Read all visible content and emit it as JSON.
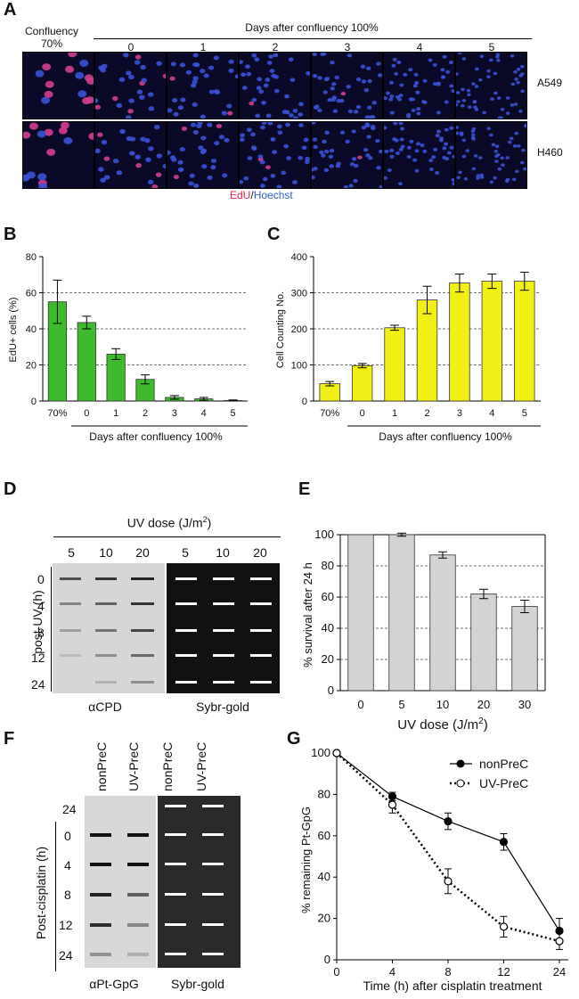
{
  "panelA": {
    "label": "A",
    "confluency_label_line1": "Confluency",
    "confluency_label_line2": "70%",
    "days_header": "Days after confluency 100%",
    "columns": [
      "0",
      "1",
      "2",
      "3",
      "4",
      "5"
    ],
    "rows": [
      "A549",
      "H460"
    ],
    "caption_edu": "EdU",
    "caption_sep": "/",
    "caption_hoechst": "Hoechst",
    "edu_color": "#e0204a",
    "hoechst_color": "#2a5fd8"
  },
  "chart_data": [
    {
      "panel": "B",
      "type": "bar",
      "categories": [
        "70%",
        "0",
        "1",
        "2",
        "3",
        "4",
        "5"
      ],
      "values": [
        55,
        43.5,
        26,
        12,
        2,
        1.2,
        0.3
      ],
      "errors": [
        12,
        3.5,
        3,
        2.5,
        1,
        0.8,
        0.3
      ],
      "ylabel": "EdU+ cells (%)",
      "xlabel": "Days after confluency 100%",
      "ylim": [
        0,
        80
      ],
      "yticks": [
        "0",
        "20",
        "40",
        "60",
        "80"
      ],
      "bar_color": "#3dbb2c"
    },
    {
      "panel": "C",
      "type": "bar",
      "categories": [
        "70%",
        "0",
        "1",
        "2",
        "3",
        "4",
        "5"
      ],
      "values": [
        48,
        98,
        203,
        280,
        327,
        332,
        332
      ],
      "errors": [
        6,
        6,
        7,
        38,
        25,
        20,
        25
      ],
      "ylabel": "Cell Counting No.",
      "xlabel": "Days after confluency 100%",
      "ylim": [
        0,
        400
      ],
      "yticks": [
        "0",
        "100",
        "200",
        "300",
        "400"
      ],
      "bar_color": "#f2ef14"
    },
    {
      "panel": "E",
      "type": "bar",
      "categories": [
        "0",
        "5",
        "10",
        "20",
        "30"
      ],
      "values": [
        100,
        100,
        87,
        62,
        54
      ],
      "errors": [
        0,
        1,
        2,
        3,
        4
      ],
      "ylabel": "% survival  after 24 h",
      "xlabel": "UV dose (J/m",
      "xlabel_sup": "2",
      "xlabel_end": ")",
      "ylim": [
        0,
        100
      ],
      "yticks": [
        "0",
        "20",
        "40",
        "60",
        "80",
        "100"
      ],
      "bar_color": "#d3d3d3"
    },
    {
      "panel": "G",
      "type": "line",
      "x": [
        "0",
        "4",
        "8",
        "12",
        "24"
      ],
      "series": [
        {
          "name": "nonPreC",
          "values": [
            100,
            79,
            67,
            57,
            14
          ],
          "errors": [
            0,
            2,
            4,
            4,
            6
          ],
          "style": "solid",
          "marker": "filled"
        },
        {
          "name": "UV-PreC",
          "values": [
            100,
            75,
            38,
            16,
            9
          ],
          "errors": [
            0,
            4,
            6,
            5,
            4
          ],
          "style": "dotted",
          "marker": "open"
        }
      ],
      "ylabel": "% remaining  Pt-GpG",
      "xlabel": "Time (h) after cisplatin treatment",
      "ylim": [
        0,
        100
      ],
      "yticks": [
        "0",
        "20",
        "40",
        "60",
        "80",
        "100"
      ]
    }
  ],
  "panelB": {
    "label": "B"
  },
  "panelC": {
    "label": "C"
  },
  "panelD": {
    "label": "D",
    "uv_title": "UV dose (J/m",
    "uv_title_sup": "2",
    "uv_title_end": ")",
    "doses": [
      "5",
      "10",
      "20",
      "5",
      "10",
      "20"
    ],
    "rows": [
      "0",
      "4",
      "8",
      "12",
      "24"
    ],
    "ylabel": "post-UV (h)",
    "caption_left": "αCPD",
    "caption_right": "Sybr-gold"
  },
  "panelE": {
    "label": "E"
  },
  "panelF": {
    "label": "F",
    "columns": [
      "nonPreC",
      "UV-PreC",
      "nonPreC",
      "UV-PreC"
    ],
    "row_top": "24",
    "rows": [
      "0",
      "4",
      "8",
      "12",
      "24"
    ],
    "ylabel": "Post-cisplatin (h)",
    "caption_left": "αPt-GpG",
    "caption_right": "Sybr-gold"
  },
  "panelG": {
    "label": "G"
  }
}
